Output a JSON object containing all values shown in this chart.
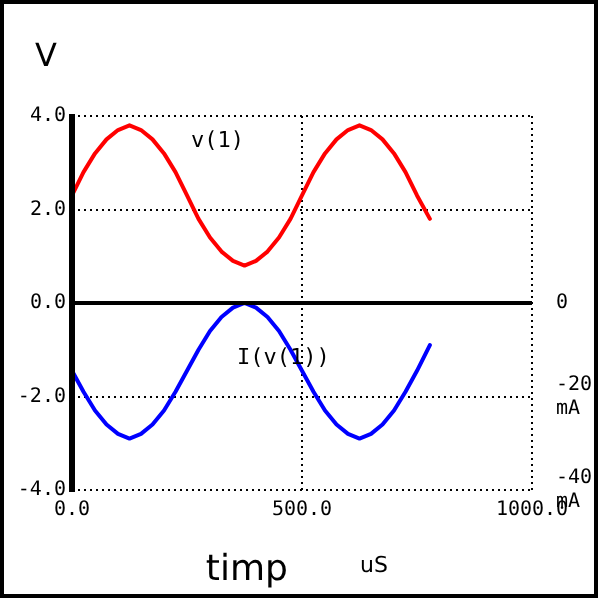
{
  "chart_data": {
    "type": "line",
    "ylabel": "V",
    "xlabel": "timp",
    "annotations": [
      "uS"
    ],
    "x": [
      0,
      25,
      50,
      75,
      100,
      125,
      150,
      175,
      200,
      225,
      250,
      275,
      300,
      325,
      350,
      375,
      400,
      425,
      450,
      475,
      500,
      525,
      550,
      575,
      600,
      625,
      650,
      675,
      700,
      725,
      750,
      778
    ],
    "series": [
      {
        "name": "v(1)",
        "color": "#ff0000",
        "values": [
          2.3,
          2.8,
          3.2,
          3.5,
          3.7,
          3.8,
          3.7,
          3.5,
          3.2,
          2.8,
          2.3,
          1.8,
          1.4,
          1.1,
          0.9,
          0.8,
          0.9,
          1.1,
          1.4,
          1.8,
          2.3,
          2.8,
          3.2,
          3.5,
          3.7,
          3.8,
          3.7,
          3.5,
          3.2,
          2.8,
          2.3,
          1.8
        ]
      },
      {
        "name": "I(v(1))",
        "color": "#0000ff",
        "axis": "y2",
        "values": [
          -14.5,
          -19,
          -23,
          -26,
          -28,
          -29,
          -28,
          -26,
          -23,
          -19,
          -14.5,
          -10,
          -6,
          -3,
          -1,
          0,
          -1,
          -3,
          -6,
          -10,
          -14.5,
          -19,
          -23,
          -26,
          -28,
          -29,
          -28,
          -26,
          -23,
          -19,
          -14.5,
          -9
        ]
      }
    ],
    "xlim": [
      0,
      1000
    ],
    "xticks": [
      {
        "value": 0,
        "label": "0.0"
      },
      {
        "value": 500,
        "label": "500.0"
      },
      {
        "value": 1000,
        "label": "1000.0"
      }
    ],
    "ylim": [
      -4,
      4
    ],
    "yticks": [
      {
        "value": -4,
        "label": "-4.0"
      },
      {
        "value": -2,
        "label": "-2.0"
      },
      {
        "value": 0,
        "label": "0.0"
      },
      {
        "value": 2,
        "label": "2.0"
      },
      {
        "value": 4,
        "label": "4.0"
      }
    ],
    "y2lim": [
      -40,
      40
    ],
    "y2ticks": [
      {
        "value": -40,
        "label": "-40\nmA"
      },
      {
        "value": -20,
        "label": "-20\nmA"
      },
      0
    ],
    "grid": true,
    "legend": false,
    "marker": "none",
    "line_style": "solid"
  }
}
